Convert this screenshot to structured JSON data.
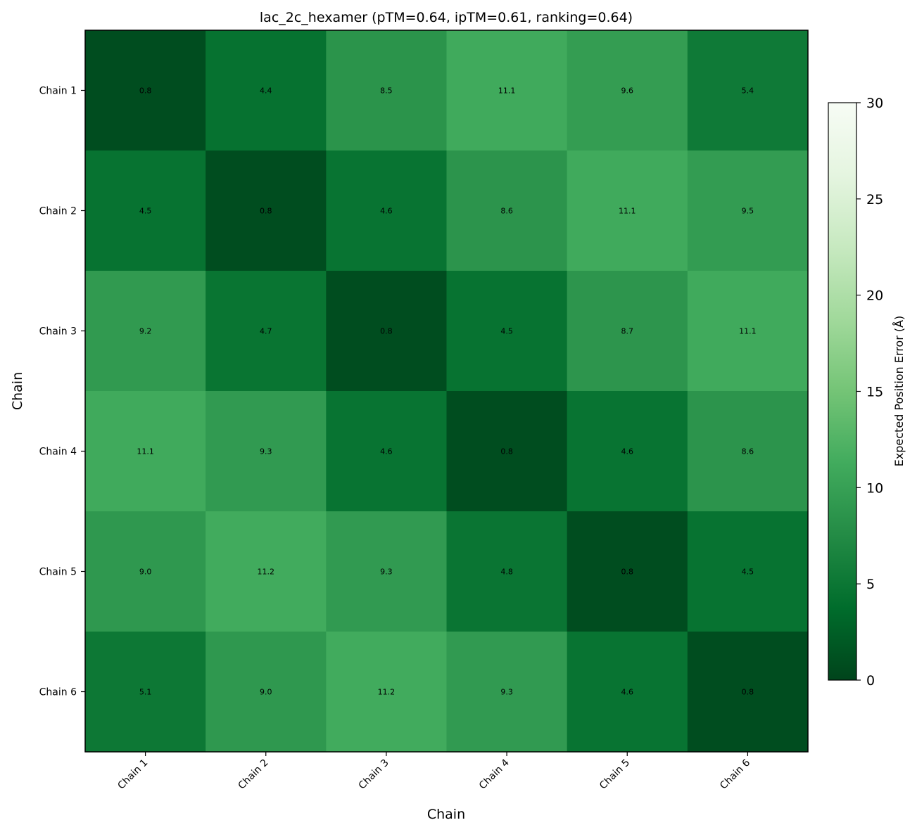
{
  "chart_data": {
    "type": "heatmap",
    "title": "lac_2c_hexamer (pTM=0.64, ipTM=0.61, ranking=0.64)",
    "xlabel": "Chain",
    "ylabel": "Chain",
    "x_categories": [
      "Chain 1",
      "Chain 2",
      "Chain 3",
      "Chain 4",
      "Chain 5",
      "Chain 6"
    ],
    "y_categories": [
      "Chain 1",
      "Chain 2",
      "Chain 3",
      "Chain 4",
      "Chain 5",
      "Chain 6"
    ],
    "values": [
      [
        0.8,
        4.4,
        8.5,
        11.1,
        9.6,
        5.4
      ],
      [
        4.5,
        0.8,
        4.6,
        8.6,
        11.1,
        9.5
      ],
      [
        9.2,
        4.7,
        0.8,
        4.5,
        8.7,
        11.1
      ],
      [
        11.1,
        9.3,
        4.6,
        0.8,
        4.6,
        8.6
      ],
      [
        9.0,
        11.2,
        9.3,
        4.8,
        0.8,
        4.5
      ],
      [
        5.1,
        9.0,
        11.2,
        9.3,
        4.6,
        0.8
      ]
    ],
    "value_labels": [
      [
        "0.8",
        "4.4",
        "8.5",
        "11.1",
        "9.6",
        "5.4"
      ],
      [
        "4.5",
        "0.8",
        "4.6",
        "8.6",
        "11.1",
        "9.5"
      ],
      [
        "9.2",
        "4.7",
        "0.8",
        "4.5",
        "8.7",
        "11.1"
      ],
      [
        "11.1",
        "9.3",
        "4.6",
        "0.8",
        "4.6",
        "8.6"
      ],
      [
        "9.0",
        "11.2",
        "9.3",
        "4.8",
        "0.8",
        "4.5"
      ],
      [
        "5.1",
        "9.0",
        "11.2",
        "9.3",
        "4.6",
        "0.8"
      ]
    ],
    "colorbar": {
      "label": "Expected Position Error (Å)",
      "range": [
        0,
        30
      ],
      "ticks": [
        0,
        5,
        10,
        15,
        20,
        25,
        30
      ],
      "tick_labels": [
        "0",
        "5",
        "10",
        "15",
        "20",
        "25",
        "30"
      ],
      "colormap": "Greens_r"
    },
    "grid": false
  }
}
